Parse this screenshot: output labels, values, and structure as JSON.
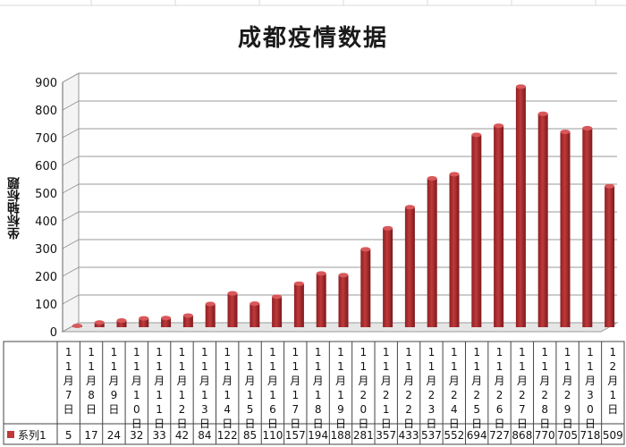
{
  "chart_data": {
    "type": "bar",
    "title": "成都疫情数据",
    "ylabel": "坐标轴标题",
    "xlabel": "",
    "ylim": [
      0,
      900
    ],
    "yticks": [
      0,
      100,
      200,
      300,
      400,
      500,
      600,
      700,
      800,
      900
    ],
    "grid": true,
    "legend": "data-table",
    "categories": [
      "11月7日",
      "11月8日",
      "11月9日",
      "11月10日",
      "11月11日",
      "11月12日",
      "11月13日",
      "11月14日",
      "11月15日",
      "11月16日",
      "11月17日",
      "11月18日",
      "11月19日",
      "11月20日",
      "11月21日",
      "11月22日",
      "11月23日",
      "11月24日",
      "11月25日",
      "11月26日",
      "11月27日",
      "11月28日",
      "11月29日",
      "11月30日",
      "12月1日"
    ],
    "series": [
      {
        "name": "系列1",
        "color": "#c0393b",
        "values": [
          5,
          17,
          24,
          32,
          33,
          42,
          84,
          122,
          85,
          110,
          157,
          194,
          188,
          281,
          357,
          433,
          537,
          552,
          694,
          727,
          868,
          770,
          705,
          718,
          509
        ]
      }
    ]
  }
}
